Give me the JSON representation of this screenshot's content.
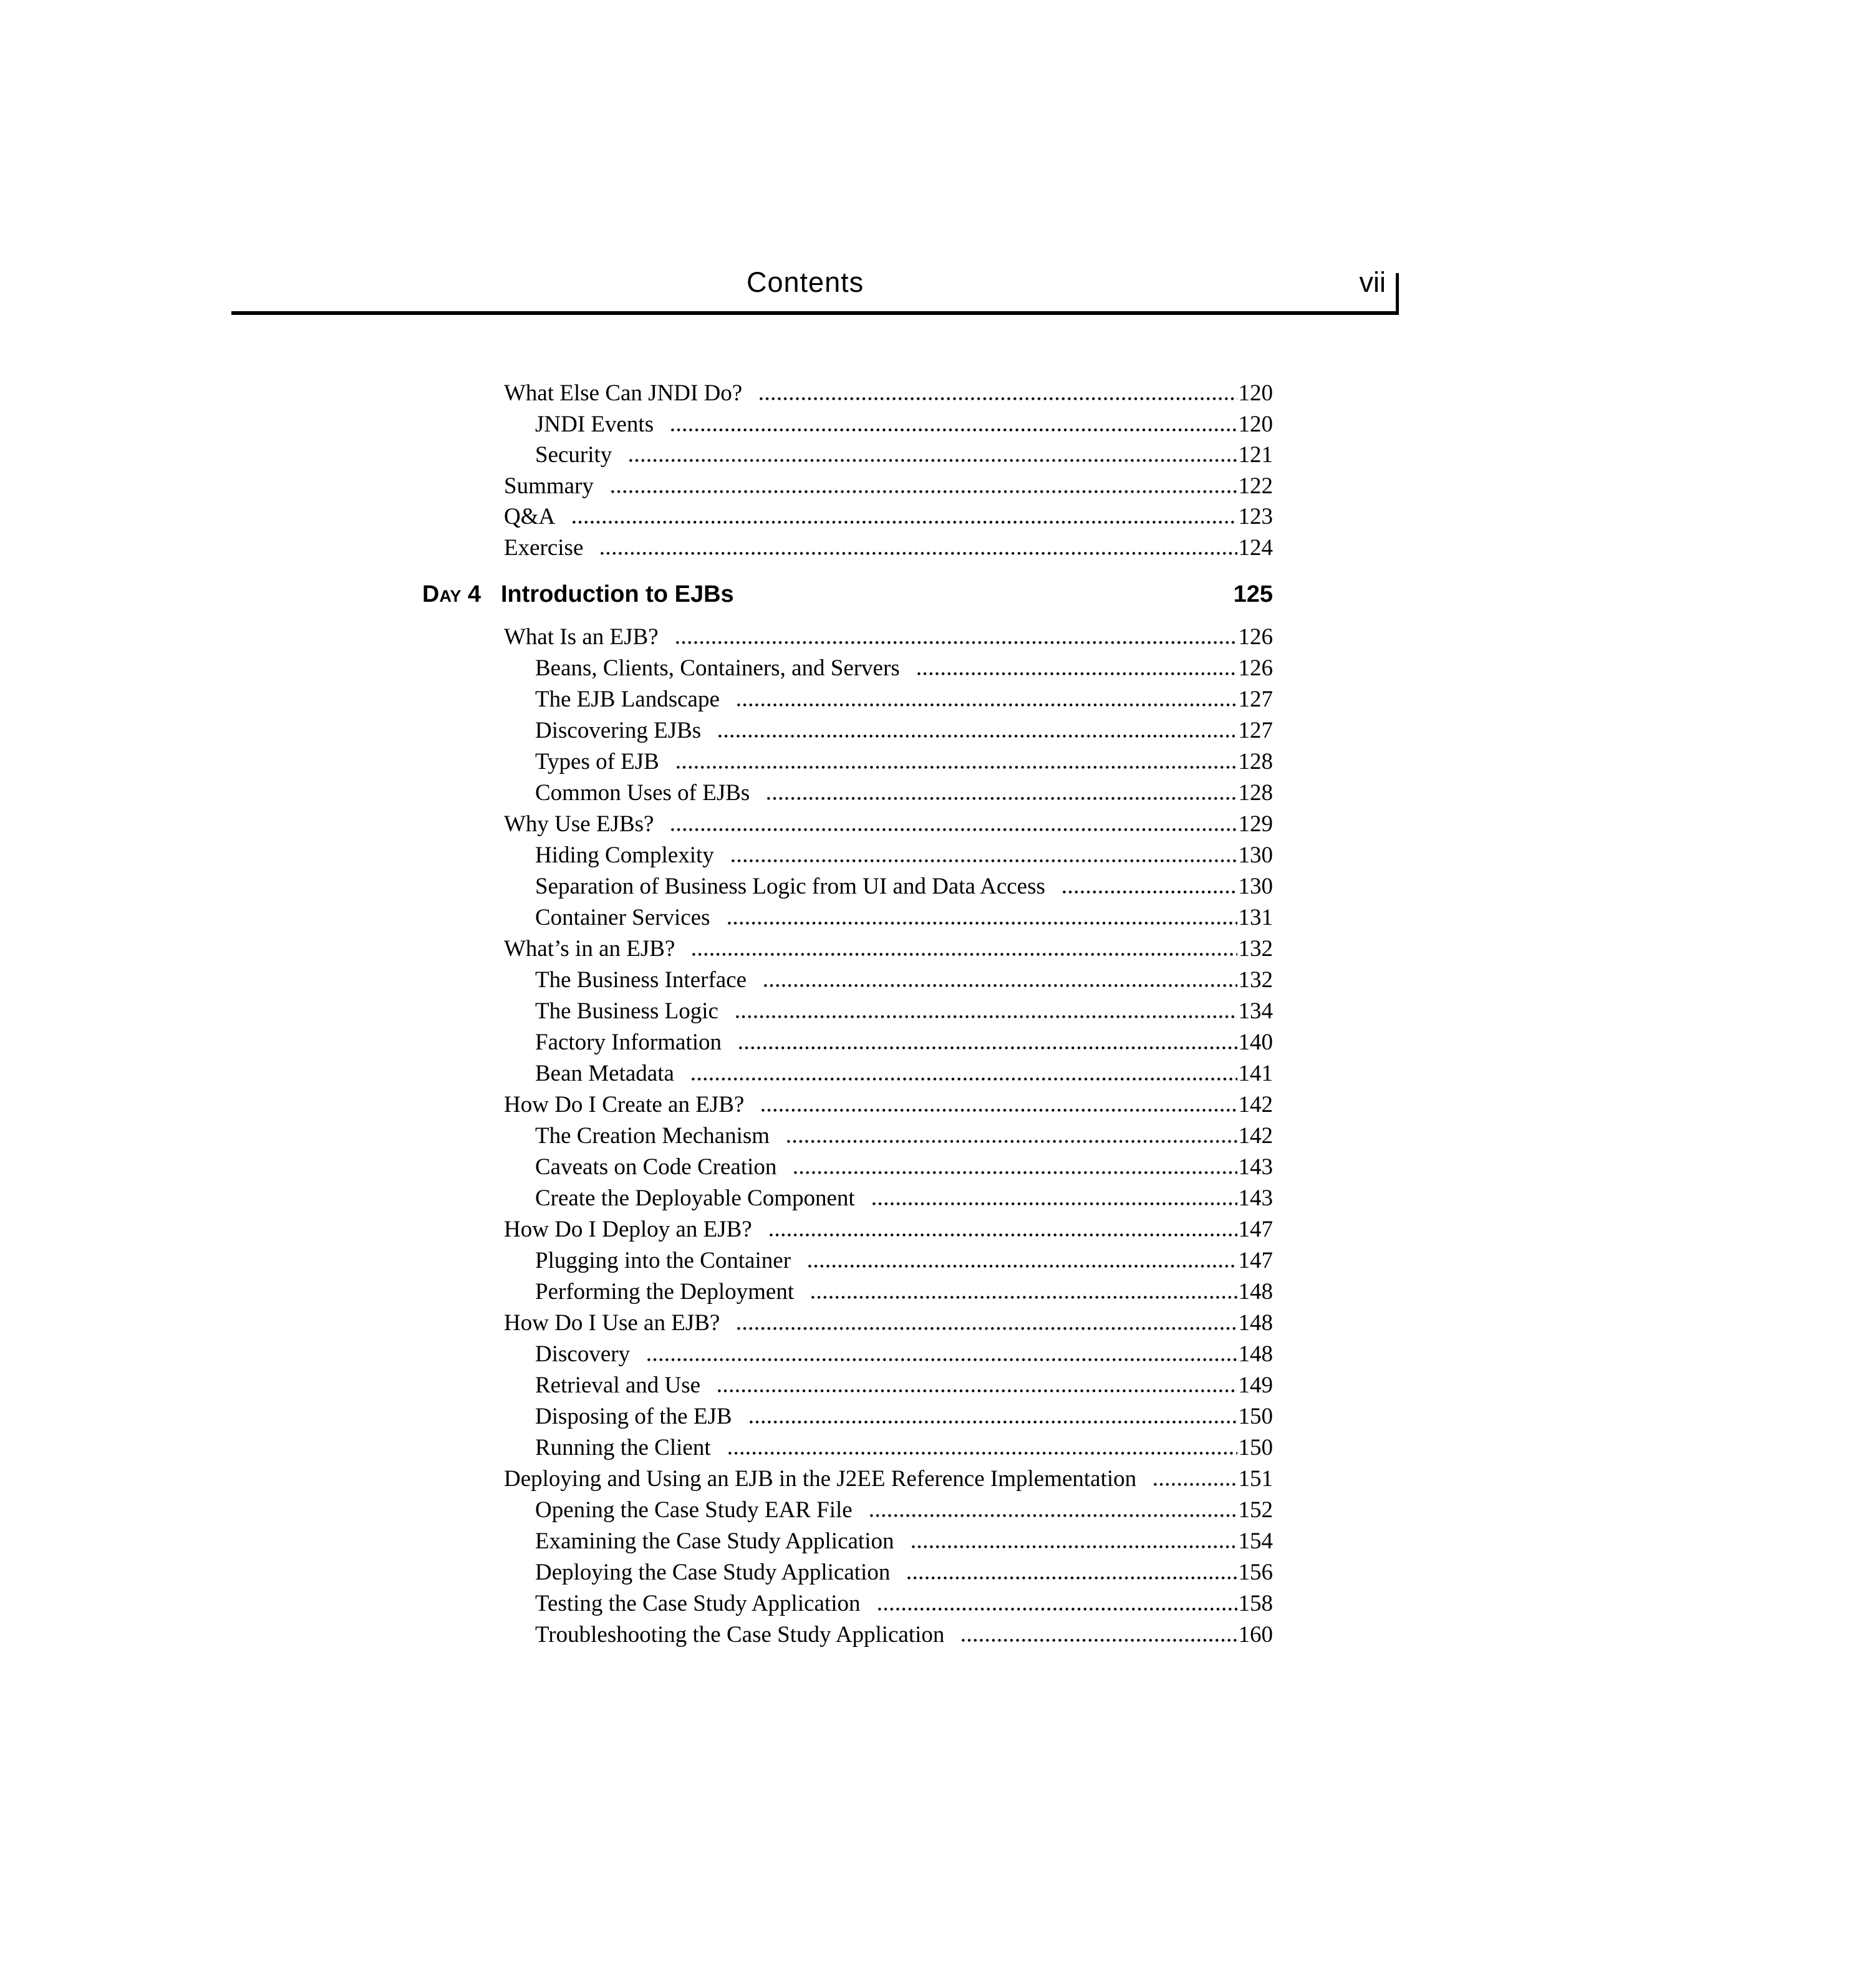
{
  "page": {
    "background": "#ffffff",
    "text_color": "#000000",
    "rule_color": "#000000"
  },
  "header": {
    "title": "Contents",
    "folio": "vii"
  },
  "day_heading": {
    "label": "Day 4",
    "title": "Introduction to EJBs",
    "page": "125"
  },
  "toc": {
    "sections": [
      {
        "id": "pre",
        "entries": [
          {
            "title": "What Else Can JNDI Do?",
            "page": "120",
            "level": 1
          },
          {
            "title": "JNDI Events",
            "page": "120",
            "level": 2
          },
          {
            "title": "Security",
            "page": "121",
            "level": 2
          },
          {
            "title": "Summary",
            "page": "122",
            "level": 1
          },
          {
            "title": "Q&A",
            "page": "123",
            "level": 1
          },
          {
            "title": "Exercise",
            "page": "124",
            "level": 1
          }
        ]
      },
      {
        "id": "day4",
        "entries": [
          {
            "title": "What Is an EJB?",
            "page": "126",
            "level": 1
          },
          {
            "title": "Beans, Clients, Containers, and Servers",
            "page": "126",
            "level": 2
          },
          {
            "title": "The EJB Landscape",
            "page": "127",
            "level": 2
          },
          {
            "title": "Discovering EJBs",
            "page": "127",
            "level": 2
          },
          {
            "title": "Types of EJB",
            "page": "128",
            "level": 2
          },
          {
            "title": "Common Uses of EJBs",
            "page": "128",
            "level": 2
          },
          {
            "title": "Why Use EJBs?",
            "page": "129",
            "level": 1
          },
          {
            "title": "Hiding Complexity",
            "page": "130",
            "level": 2
          },
          {
            "title": "Separation of Business Logic from UI and Data Access",
            "page": "130",
            "level": 2
          },
          {
            "title": "Container Services",
            "page": "131",
            "level": 2
          },
          {
            "title": "What’s in an EJB?",
            "page": "132",
            "level": 1
          },
          {
            "title": "The Business Interface",
            "page": "132",
            "level": 2
          },
          {
            "title": "The Business Logic",
            "page": "134",
            "level": 2
          },
          {
            "title": "Factory Information",
            "page": "140",
            "level": 2
          },
          {
            "title": "Bean Metadata",
            "page": "141",
            "level": 2
          },
          {
            "title": "How Do I Create an EJB?",
            "page": "142",
            "level": 1
          },
          {
            "title": "The Creation Mechanism",
            "page": "142",
            "level": 2
          },
          {
            "title": "Caveats on Code Creation",
            "page": "143",
            "level": 2
          },
          {
            "title": "Create the Deployable Component",
            "page": "143",
            "level": 2
          },
          {
            "title": "How Do I Deploy an EJB?",
            "page": "147",
            "level": 1
          },
          {
            "title": "Plugging into the Container",
            "page": "147",
            "level": 2
          },
          {
            "title": "Performing the Deployment",
            "page": "148",
            "level": 2
          },
          {
            "title": "How Do I Use an EJB?",
            "page": "148",
            "level": 1
          },
          {
            "title": "Discovery",
            "page": "148",
            "level": 2
          },
          {
            "title": "Retrieval and Use",
            "page": "149",
            "level": 2
          },
          {
            "title": "Disposing of the EJB",
            "page": "150",
            "level": 2
          },
          {
            "title": "Running the Client",
            "page": "150",
            "level": 2
          },
          {
            "title": "Deploying and Using an EJB in the J2EE Reference Implementation",
            "page": "151",
            "level": 1
          },
          {
            "title": "Opening the Case Study EAR File",
            "page": "152",
            "level": 2
          },
          {
            "title": "Examining the Case Study Application",
            "page": "154",
            "level": 2
          },
          {
            "title": "Deploying the Case Study Application",
            "page": "156",
            "level": 2
          },
          {
            "title": "Testing the Case Study Application",
            "page": "158",
            "level": 2
          },
          {
            "title": "Troubleshooting the Case Study Application",
            "page": "160",
            "level": 2
          }
        ]
      }
    ]
  }
}
